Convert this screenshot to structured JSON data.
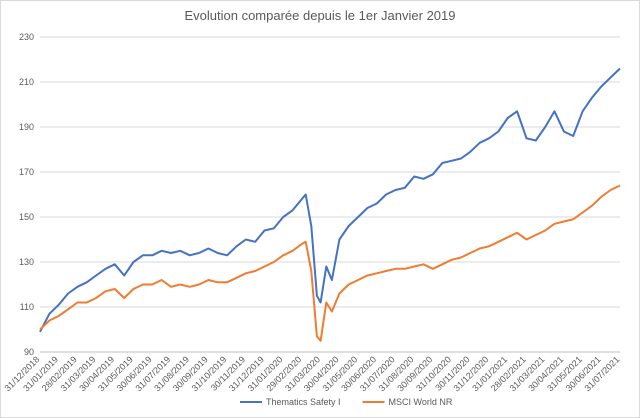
{
  "chart_data": {
    "type": "line",
    "title": "Evolution comparée depuis le 1er Janvier 2019",
    "xlabel": "",
    "ylabel": "",
    "ylim": [
      90,
      230
    ],
    "yticks": [
      90,
      110,
      130,
      150,
      170,
      190,
      210,
      230
    ],
    "grid": true,
    "legend_position": "bottom",
    "x_tick_labels": [
      "31/12/2018",
      "31/01/2019",
      "28/02/2019",
      "31/03/2019",
      "30/04/2019",
      "31/05/2019",
      "30/06/2019",
      "31/07/2019",
      "31/08/2019",
      "30/09/2019",
      "31/10/2019",
      "30/11/2019",
      "31/12/2019",
      "31/01/2020",
      "29/02/2020",
      "31/03/2020",
      "30/04/2020",
      "31/05/2020",
      "30/06/2020",
      "31/07/2020",
      "31/08/2020",
      "30/09/2020",
      "31/10/2020",
      "30/11/2020",
      "31/12/2020",
      "31/01/2021",
      "28/02/2021",
      "31/03/2021",
      "30/04/2021",
      "31/05/2021",
      "30/06/2021",
      "31/07/2021"
    ],
    "x": [
      0,
      0.5,
      1,
      1.5,
      2,
      2.5,
      3,
      3.5,
      4,
      4.5,
      5,
      5.5,
      6,
      6.5,
      7,
      7.5,
      8,
      8.5,
      9,
      9.5,
      10,
      10.5,
      11,
      11.5,
      12,
      12.5,
      13,
      13.5,
      14,
      14.2,
      14.5,
      14.8,
      15,
      15.3,
      15.6,
      16,
      16.5,
      17,
      17.5,
      18,
      18.5,
      19,
      19.5,
      20,
      20.5,
      21,
      21.5,
      22,
      22.5,
      23,
      23.5,
      24,
      24.5,
      25,
      25.5,
      26,
      26.5,
      27,
      27.5,
      28,
      28.5,
      29,
      29.5,
      30,
      30.5,
      31
    ],
    "series": [
      {
        "name": "Thematics Safety I",
        "color": "#4472C4",
        "values": [
          99,
          107,
          111,
          116,
          119,
          121,
          124,
          127,
          129,
          124,
          130,
          133,
          133,
          135,
          134,
          135,
          133,
          134,
          136,
          134,
          133,
          137,
          140,
          139,
          144,
          145,
          150,
          153,
          158,
          160,
          146,
          115,
          112,
          128,
          122,
          140,
          146,
          150,
          154,
          156,
          160,
          162,
          163,
          168,
          167,
          169,
          174,
          175,
          176,
          179,
          183,
          185,
          188,
          194,
          197,
          185,
          184,
          190,
          197,
          188,
          186,
          197,
          203,
          208,
          212,
          216
        ]
      },
      {
        "name": "MSCI World NR",
        "color": "#ED7D31",
        "values": [
          100,
          104,
          106,
          109,
          112,
          112,
          114,
          117,
          118,
          114,
          118,
          120,
          120,
          122,
          119,
          120,
          119,
          120,
          122,
          121,
          121,
          123,
          125,
          126,
          128,
          130,
          133,
          135,
          138,
          139,
          126,
          97,
          95,
          112,
          108,
          116,
          120,
          122,
          124,
          125,
          126,
          127,
          127,
          128,
          129,
          127,
          129,
          131,
          132,
          134,
          136,
          137,
          139,
          141,
          143,
          140,
          142,
          144,
          147,
          148,
          149,
          152,
          155,
          159,
          162,
          164
        ]
      }
    ]
  }
}
